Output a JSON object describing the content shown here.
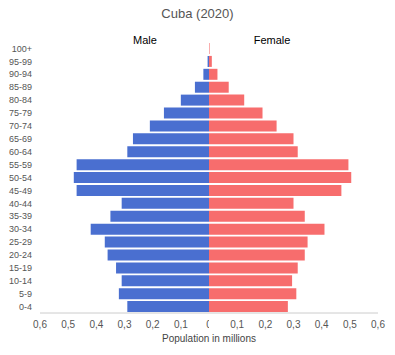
{
  "chart_data": {
    "type": "bar",
    "orientation": "horizontal",
    "title": "Cuba (2020)",
    "xlabel": "Population in millions",
    "categories": [
      "0-4",
      "5-9",
      "10-14",
      "15-19",
      "20-24",
      "25-29",
      "30-34",
      "35-39",
      "40-44",
      "45-49",
      "50-54",
      "55-59",
      "60-64",
      "65-69",
      "70-74",
      "75-79",
      "80-84",
      "85-89",
      "90-94",
      "95-99",
      "100+"
    ],
    "series": [
      {
        "name": "Male",
        "color": "#4a6fd0",
        "values": [
          0.29,
          0.32,
          0.31,
          0.33,
          0.36,
          0.37,
          0.42,
          0.35,
          0.31,
          0.47,
          0.48,
          0.47,
          0.29,
          0.27,
          0.21,
          0.16,
          0.1,
          0.05,
          0.02,
          0.005,
          0
        ]
      },
      {
        "name": "Female",
        "color": "#f76d6d",
        "values": [
          0.28,
          0.31,
          0.295,
          0.315,
          0.34,
          0.35,
          0.41,
          0.34,
          0.3,
          0.47,
          0.505,
          0.495,
          0.315,
          0.3,
          0.24,
          0.19,
          0.125,
          0.07,
          0.03,
          0.01,
          0.002
        ]
      }
    ],
    "xlim": [
      0,
      0.6
    ],
    "xticks": [
      0,
      {
        "value": 0.1,
        "label": "0,1"
      },
      {
        "value": 0.2,
        "label": "0,2"
      },
      {
        "value": 0.3,
        "label": "0,3"
      },
      {
        "value": 0.4,
        "label": "0,4"
      },
      {
        "value": 0.5,
        "label": "0,5"
      },
      {
        "value": 0.6,
        "label": "0,6"
      }
    ],
    "grid": false
  }
}
